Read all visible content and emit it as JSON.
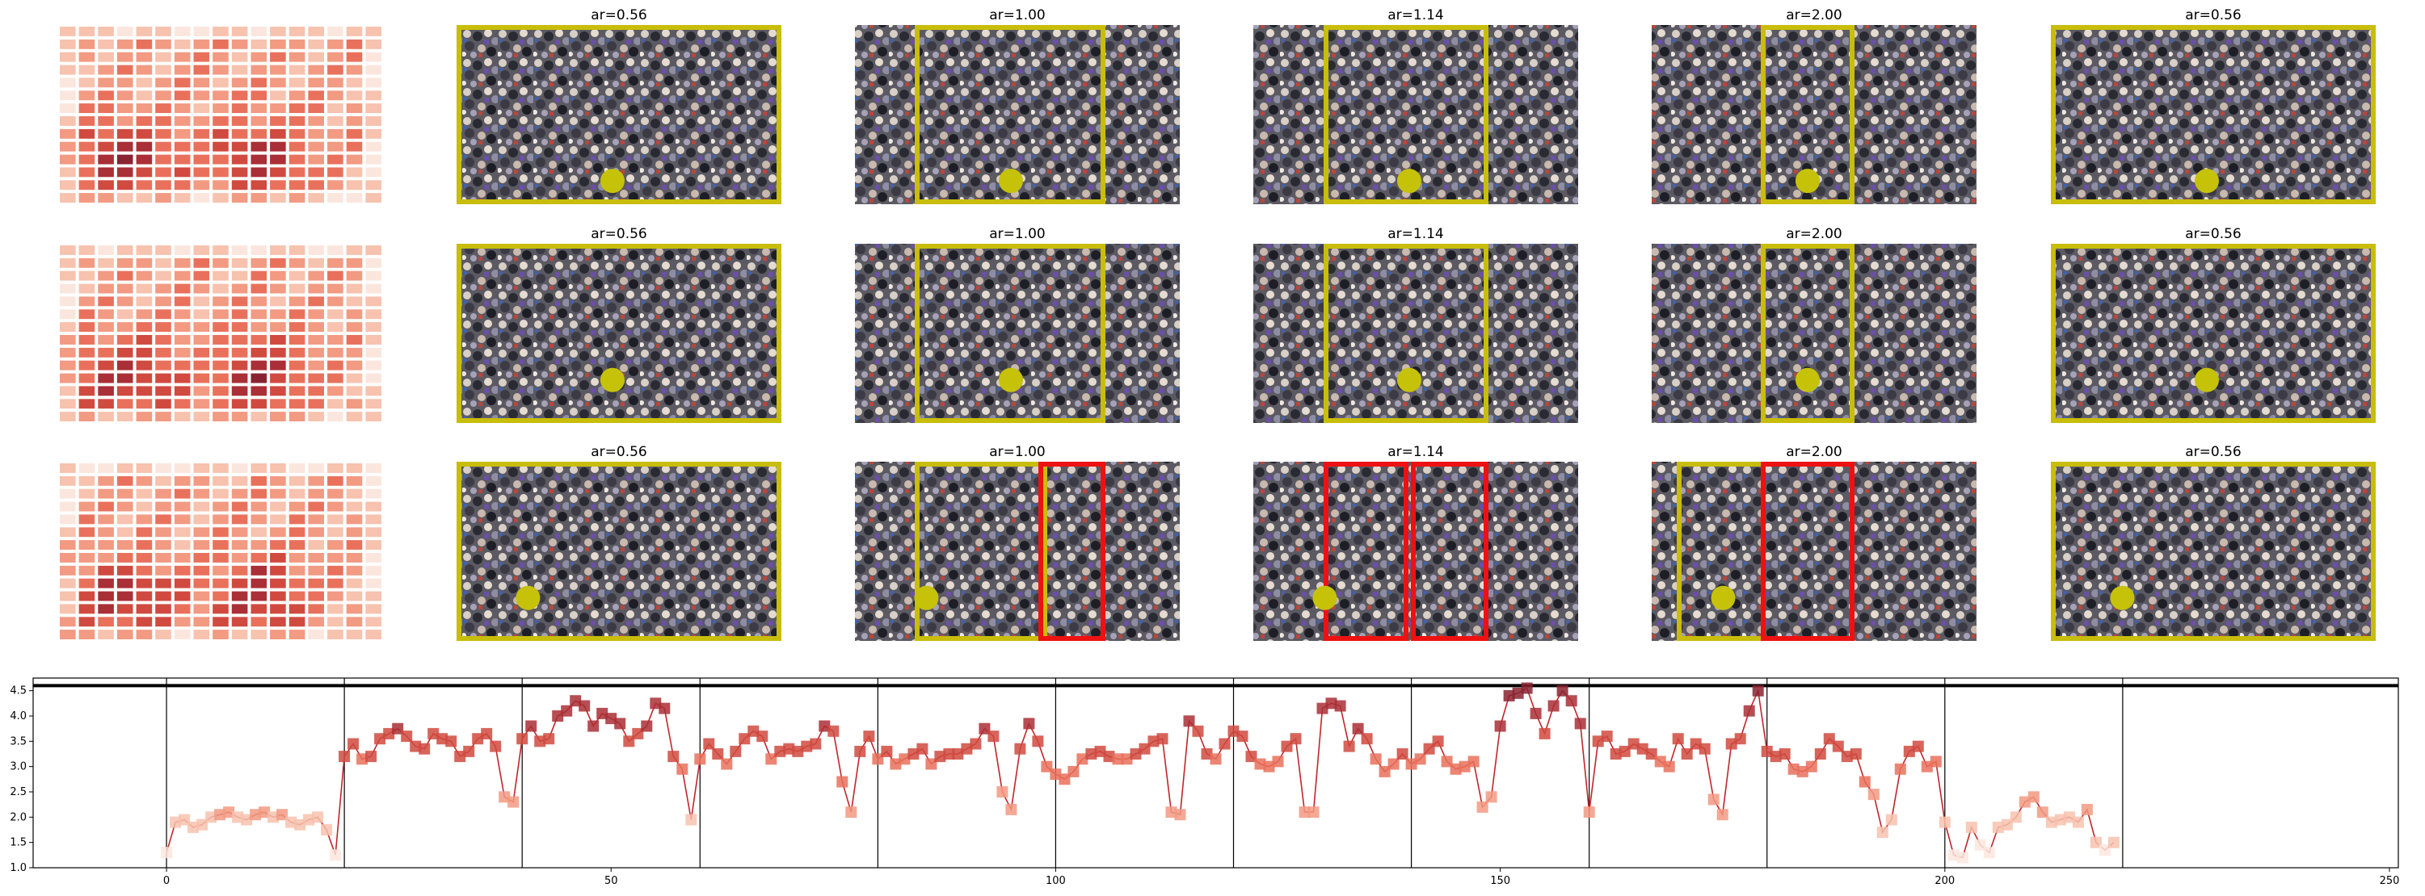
{
  "grid": {
    "rows": 3,
    "titles": [
      "ar=0.56",
      "ar=1.00",
      "ar=1.14",
      "ar=2.00",
      "ar=0.56"
    ],
    "colors": {
      "heatmap": [
        "#fbe6de",
        "#f7c2ae",
        "#f29a82",
        "#e9715c",
        "#d04a40",
        "#aa2f36",
        "#8a2331"
      ],
      "box_yellow": "#c8bd0a",
      "box_red": "#ee1111",
      "dot_yellow": "#c6c20a"
    }
  },
  "chart_data": {
    "type": "line",
    "title": "",
    "xlabel": "",
    "ylabel": "",
    "xlim": [
      -15,
      251
    ],
    "ylim": [
      1.0,
      4.75
    ],
    "xticks": [
      0,
      50,
      100,
      150,
      200,
      250
    ],
    "yticks": [
      1.0,
      1.5,
      2.0,
      2.5,
      3.0,
      3.5,
      4.0,
      4.5
    ],
    "reference_line": 4.6,
    "segment_boundaries": [
      0,
      20,
      40,
      60,
      80,
      100,
      120,
      140,
      160,
      180,
      200,
      220
    ],
    "grid": false,
    "legend": "none",
    "line_color": "#c0262c",
    "series": [
      {
        "x_start": 0,
        "values": [
          1.3,
          1.9,
          1.95,
          1.8,
          1.85,
          2.0,
          2.05,
          2.1,
          2.0,
          1.95,
          2.05,
          2.1,
          2.0,
          2.05,
          1.9,
          1.85,
          1.95,
          2.0,
          1.75,
          1.25,
          3.2,
          3.45,
          3.15,
          3.2,
          3.55,
          3.65,
          3.75,
          3.6,
          3.4,
          3.35,
          3.65,
          3.55,
          3.5,
          3.2,
          3.3,
          3.55,
          3.65,
          3.4,
          2.4,
          2.3,
          3.55,
          3.8,
          3.5,
          3.55,
          4.0,
          4.1,
          4.3,
          4.2,
          3.8,
          4.05,
          3.95,
          3.85,
          3.5,
          3.65,
          3.8,
          4.25,
          4.15,
          3.2,
          2.95,
          1.95,
          3.15,
          3.45,
          3.25,
          3.05,
          3.3,
          3.55,
          3.7,
          3.6,
          3.15,
          3.3,
          3.35,
          3.3,
          3.4,
          3.45,
          3.8,
          3.7,
          2.7,
          2.1,
          3.3,
          3.6,
          3.15,
          3.3,
          3.05,
          3.15,
          3.25,
          3.35,
          3.05,
          3.2,
          3.25,
          3.25,
          3.35,
          3.45,
          3.75,
          3.6,
          2.5,
          2.15,
          3.35,
          3.85,
          3.5,
          3.0,
          2.85,
          2.75,
          2.9,
          3.15,
          3.25,
          3.3,
          3.2,
          3.15,
          3.15,
          3.25,
          3.35,
          3.5,
          3.55,
          2.1,
          2.05,
          3.9,
          3.7,
          3.25,
          3.15,
          3.45,
          3.7,
          3.6,
          3.2,
          3.05,
          3.0,
          3.1,
          3.4,
          3.55,
          2.1,
          2.1,
          4.15,
          4.25,
          4.2,
          3.4,
          3.75,
          3.55,
          3.15,
          2.9,
          3.05,
          3.25,
          3.05,
          3.15,
          3.35,
          3.5,
          3.1,
          2.95,
          3.0,
          3.1,
          2.2,
          2.4,
          3.8,
          4.4,
          4.45,
          4.55,
          4.05,
          3.65,
          4.2,
          4.5,
          4.3,
          3.85,
          2.1,
          3.5,
          3.6,
          3.25,
          3.3,
          3.45,
          3.35,
          3.25,
          3.1,
          3.0,
          3.55,
          3.25,
          3.45,
          3.35,
          2.35,
          2.05,
          3.45,
          3.55,
          4.1,
          4.5,
          3.3,
          3.2,
          3.25,
          2.95,
          2.9,
          3.0,
          3.25,
          3.55,
          3.4,
          3.2,
          3.25,
          2.7,
          2.45,
          1.7,
          1.95,
          2.95,
          3.3,
          3.4,
          3.0,
          3.1,
          1.9,
          1.25,
          1.2,
          1.8,
          1.45,
          1.3,
          1.8,
          1.85,
          2.0,
          2.3,
          2.4,
          2.1,
          1.9,
          1.95,
          2.0,
          1.9,
          2.15,
          1.5,
          1.35,
          1.5
        ]
      }
    ]
  }
}
